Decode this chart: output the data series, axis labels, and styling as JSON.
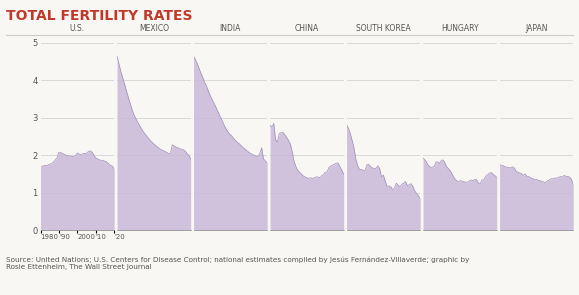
{
  "title": "TOTAL FERTILITY RATES",
  "title_color": "#c0392b",
  "fill_color": "#c9b8d8",
  "fill_alpha": 0.85,
  "line_color": "#a090b8",
  "background_color": "#f9f7f4",
  "ylim": [
    0,
    5.2
  ],
  "yticks": [
    0,
    1,
    2,
    3,
    4,
    5
  ],
  "source_text": "Source: United Nations; U.S. Centers for Disease Control; national estimates compiled by Jesús Fernández-Villaverde; graphic by\nRosie Ettenheim, The Wall Street Journal",
  "countries": [
    "U.S.",
    "MEXICO",
    "INDIA",
    "CHINA",
    "SOUTH KOREA",
    "HUNGARY",
    "JAPAN"
  ],
  "year_start": 1980,
  "year_end": 2020,
  "xtick_labels": [
    "1980",
    "'90",
    "2000",
    "'10",
    "'20"
  ],
  "data": {
    "U.S.": {
      "years": [
        1980,
        1981,
        1982,
        1983,
        1984,
        1985,
        1986,
        1987,
        1988,
        1989,
        1990,
        1991,
        1992,
        1993,
        1994,
        1995,
        1996,
        1997,
        1998,
        1999,
        2000,
        2001,
        2002,
        2003,
        2004,
        2005,
        2006,
        2007,
        2008,
        2009,
        2010,
        2011,
        2012,
        2013,
        2014,
        2015,
        2016,
        2017,
        2018,
        2019,
        2020
      ],
      "values": [
        1.68,
        1.7,
        1.73,
        1.72,
        1.74,
        1.76,
        1.78,
        1.82,
        1.87,
        1.94,
        2.08,
        2.07,
        2.05,
        2.02,
        2.0,
        1.98,
        1.98,
        1.97,
        1.97,
        1.99,
        2.06,
        2.03,
        2.01,
        2.04,
        2.05,
        2.05,
        2.1,
        2.12,
        2.08,
        2.0,
        1.93,
        1.9,
        1.88,
        1.86,
        1.86,
        1.84,
        1.82,
        1.77,
        1.73,
        1.71,
        1.64
      ]
    },
    "MEXICO": {
      "years": [
        1980,
        1981,
        1982,
        1983,
        1984,
        1985,
        1986,
        1987,
        1988,
        1989,
        1990,
        1991,
        1992,
        1993,
        1994,
        1995,
        1996,
        1997,
        1998,
        1999,
        2000,
        2001,
        2002,
        2003,
        2004,
        2005,
        2006,
        2007,
        2008,
        2009,
        2010,
        2011,
        2012,
        2013,
        2014,
        2015,
        2016,
        2017,
        2018,
        2019,
        2020
      ],
      "values": [
        4.65,
        4.45,
        4.25,
        4.08,
        3.92,
        3.74,
        3.57,
        3.4,
        3.25,
        3.1,
        3.0,
        2.9,
        2.82,
        2.73,
        2.65,
        2.58,
        2.52,
        2.46,
        2.4,
        2.35,
        2.3,
        2.26,
        2.22,
        2.18,
        2.15,
        2.13,
        2.1,
        2.08,
        2.05,
        2.05,
        2.28,
        2.25,
        2.22,
        2.2,
        2.18,
        2.16,
        2.15,
        2.11,
        2.05,
        2.0,
        1.9
      ]
    },
    "INDIA": {
      "years": [
        1980,
        1981,
        1982,
        1983,
        1984,
        1985,
        1986,
        1987,
        1988,
        1989,
        1990,
        1991,
        1992,
        1993,
        1994,
        1995,
        1996,
        1997,
        1998,
        1999,
        2000,
        2001,
        2002,
        2003,
        2004,
        2005,
        2006,
        2007,
        2008,
        2009,
        2010,
        2011,
        2012,
        2013,
        2014,
        2015,
        2016,
        2017,
        2018,
        2019,
        2020
      ],
      "values": [
        4.65,
        4.55,
        4.45,
        4.32,
        4.19,
        4.08,
        3.95,
        3.85,
        3.72,
        3.6,
        3.5,
        3.4,
        3.3,
        3.19,
        3.08,
        2.98,
        2.87,
        2.76,
        2.68,
        2.6,
        2.55,
        2.5,
        2.44,
        2.38,
        2.34,
        2.3,
        2.25,
        2.2,
        2.16,
        2.12,
        2.08,
        2.05,
        2.02,
        2.0,
        1.98,
        1.96,
        2.05,
        2.2,
        1.9,
        1.85,
        1.8
      ]
    },
    "CHINA": {
      "years": [
        1980,
        1981,
        1982,
        1983,
        1984,
        1985,
        1986,
        1987,
        1988,
        1989,
        1990,
        1991,
        1992,
        1993,
        1994,
        1995,
        1996,
        1997,
        1998,
        1999,
        2000,
        2001,
        2002,
        2003,
        2004,
        2005,
        2006,
        2007,
        2008,
        2009,
        2010,
        2011,
        2012,
        2013,
        2014,
        2015,
        2016,
        2017,
        2018,
        2019,
        2020
      ],
      "values": [
        2.8,
        2.75,
        2.85,
        2.42,
        2.35,
        2.58,
        2.6,
        2.61,
        2.55,
        2.48,
        2.4,
        2.3,
        2.1,
        1.85,
        1.7,
        1.6,
        1.55,
        1.5,
        1.45,
        1.42,
        1.4,
        1.38,
        1.4,
        1.38,
        1.4,
        1.42,
        1.42,
        1.4,
        1.45,
        1.48,
        1.55,
        1.55,
        1.68,
        1.71,
        1.74,
        1.76,
        1.79,
        1.79,
        1.69,
        1.6,
        1.49
      ]
    },
    "SOUTH KOREA": {
      "years": [
        1980,
        1981,
        1982,
        1983,
        1984,
        1985,
        1986,
        1987,
        1988,
        1989,
        1990,
        1991,
        1992,
        1993,
        1994,
        1995,
        1996,
        1997,
        1998,
        1999,
        2000,
        2001,
        2002,
        2003,
        2004,
        2005,
        2006,
        2007,
        2008,
        2009,
        2010,
        2011,
        2012,
        2013,
        2014,
        2015,
        2016,
        2017,
        2018,
        2019,
        2020
      ],
      "values": [
        2.82,
        2.72,
        2.58,
        2.4,
        2.2,
        1.9,
        1.72,
        1.62,
        1.62,
        1.6,
        1.59,
        1.74,
        1.76,
        1.7,
        1.66,
        1.65,
        1.65,
        1.72,
        1.64,
        1.42,
        1.47,
        1.31,
        1.17,
        1.18,
        1.16,
        1.08,
        1.12,
        1.25,
        1.2,
        1.15,
        1.23,
        1.24,
        1.3,
        1.19,
        1.21,
        1.24,
        1.17,
        1.05,
        0.98,
        0.92,
        0.84
      ]
    },
    "HUNGARY": {
      "years": [
        1980,
        1981,
        1982,
        1983,
        1984,
        1985,
        1986,
        1987,
        1988,
        1989,
        1990,
        1991,
        1992,
        1993,
        1994,
        1995,
        1996,
        1997,
        1998,
        1999,
        2000,
        2001,
        2002,
        2003,
        2004,
        2005,
        2006,
        2007,
        2008,
        2009,
        2010,
        2011,
        2012,
        2013,
        2014,
        2015,
        2016,
        2017,
        2018,
        2019,
        2020
      ],
      "values": [
        1.92,
        1.88,
        1.8,
        1.72,
        1.68,
        1.68,
        1.7,
        1.82,
        1.82,
        1.78,
        1.87,
        1.87,
        1.78,
        1.68,
        1.63,
        1.57,
        1.48,
        1.38,
        1.33,
        1.3,
        1.32,
        1.31,
        1.3,
        1.28,
        1.28,
        1.31,
        1.34,
        1.32,
        1.35,
        1.35,
        1.26,
        1.23,
        1.34,
        1.34,
        1.44,
        1.48,
        1.52,
        1.54,
        1.49,
        1.46,
        1.41
      ]
    },
    "JAPAN": {
      "years": [
        1980,
        1981,
        1982,
        1983,
        1984,
        1985,
        1986,
        1987,
        1988,
        1989,
        1990,
        1991,
        1992,
        1993,
        1994,
        1995,
        1996,
        1997,
        1998,
        1999,
        2000,
        2001,
        2002,
        2003,
        2004,
        2005,
        2006,
        2007,
        2008,
        2009,
        2010,
        2011,
        2012,
        2013,
        2014,
        2015,
        2016,
        2017,
        2018,
        2019,
        2020
      ],
      "values": [
        1.75,
        1.73,
        1.72,
        1.69,
        1.68,
        1.67,
        1.66,
        1.69,
        1.66,
        1.57,
        1.54,
        1.53,
        1.5,
        1.46,
        1.5,
        1.42,
        1.43,
        1.39,
        1.38,
        1.34,
        1.36,
        1.33,
        1.32,
        1.29,
        1.29,
        1.26,
        1.32,
        1.34,
        1.37,
        1.37,
        1.39,
        1.39,
        1.41,
        1.43,
        1.42,
        1.46,
        1.44,
        1.43,
        1.42,
        1.36,
        1.21
      ]
    }
  }
}
